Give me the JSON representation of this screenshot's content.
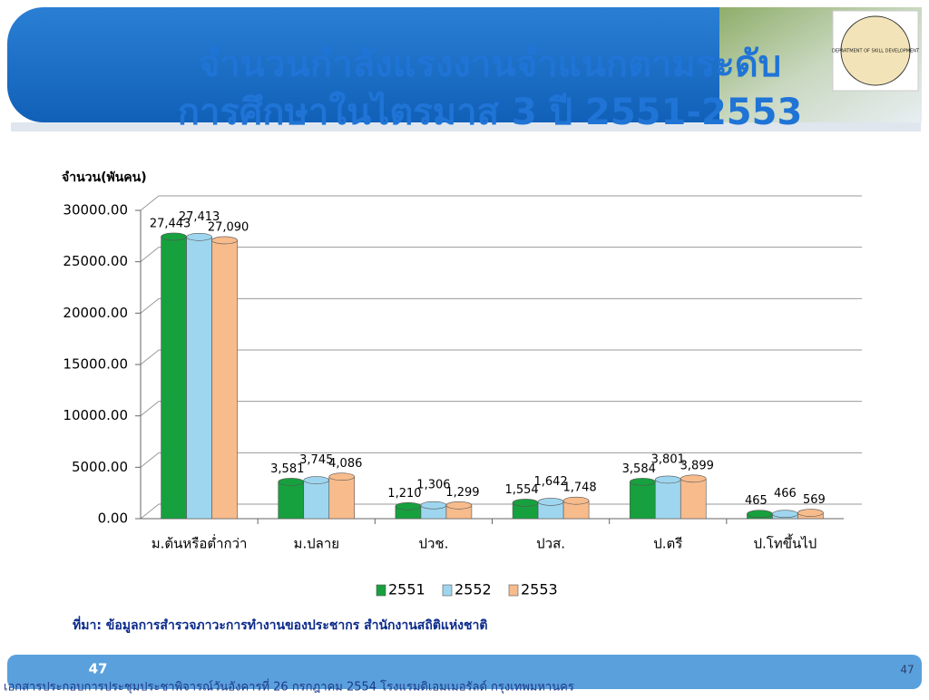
{
  "header": {
    "title_lines": [
      "จำนวนกำลังแรงงานจำแนกตามระดับ",
      "การศึกษาในไตรมาส 3 ปี 2551-2553"
    ],
    "logo_text": "DEPARTMENT OF SKILL DEVELOPMENT"
  },
  "chart_data": {
    "type": "bar",
    "y_label": "จำนวน(พันคน)",
    "categories": [
      "ม.ต้นหรือต่ำกว่า",
      "ม.ปลาย",
      "ปวช.",
      "ปวส.",
      "ป.ตรี",
      "ป.โทขึ้นไป"
    ],
    "series": [
      {
        "name": "2551",
        "color": "#17a03e",
        "values": [
          27443,
          3581,
          1210,
          1554,
          3584,
          465
        ],
        "value_labels": [
          "27,443",
          "3,581",
          "1,210",
          "1,554",
          "3,584",
          "465"
        ]
      },
      {
        "name": "2552",
        "color": "#9fd6ef",
        "values": [
          27413,
          3745,
          1306,
          1642,
          3801,
          466
        ],
        "value_labels": [
          "27,413",
          "3,745",
          "1,306",
          "1,642",
          "3,801",
          "466"
        ]
      },
      {
        "name": "2553",
        "color": "#f7bb8c",
        "values": [
          27090,
          4086,
          1299,
          1748,
          3899,
          569
        ],
        "value_labels": [
          "27,090",
          "4,086",
          "1,299",
          "1,748",
          "3,899",
          "569"
        ]
      }
    ],
    "ylim": [
      0,
      30000
    ],
    "yticks": [
      {
        "value": 0,
        "label": "0.00"
      },
      {
        "value": 5000,
        "label": "5000.00"
      },
      {
        "value": 10000,
        "label": "10000.00"
      },
      {
        "value": 15000,
        "label": "15000.00"
      },
      {
        "value": 20000,
        "label": "20000.00"
      },
      {
        "value": 25000,
        "label": "25000.00"
      },
      {
        "value": 30000,
        "label": "30000.00"
      }
    ],
    "grid": true,
    "legend": "bottom"
  },
  "source": "ที่มา: ข้อมูลการสำรวจภาวะการทำงานของประชากร สำนักงานสถิติแห่งชาติ",
  "footer": {
    "slide_number": "47",
    "page_number": "47",
    "text": "เอกสารประกอบการประชุมประชาพิจารณ์วันอังคารที่ 26 กรกฎาคม 2554 โรงแรมดิเอมเมอรัลด์ กรุงเทพมหานคร"
  }
}
